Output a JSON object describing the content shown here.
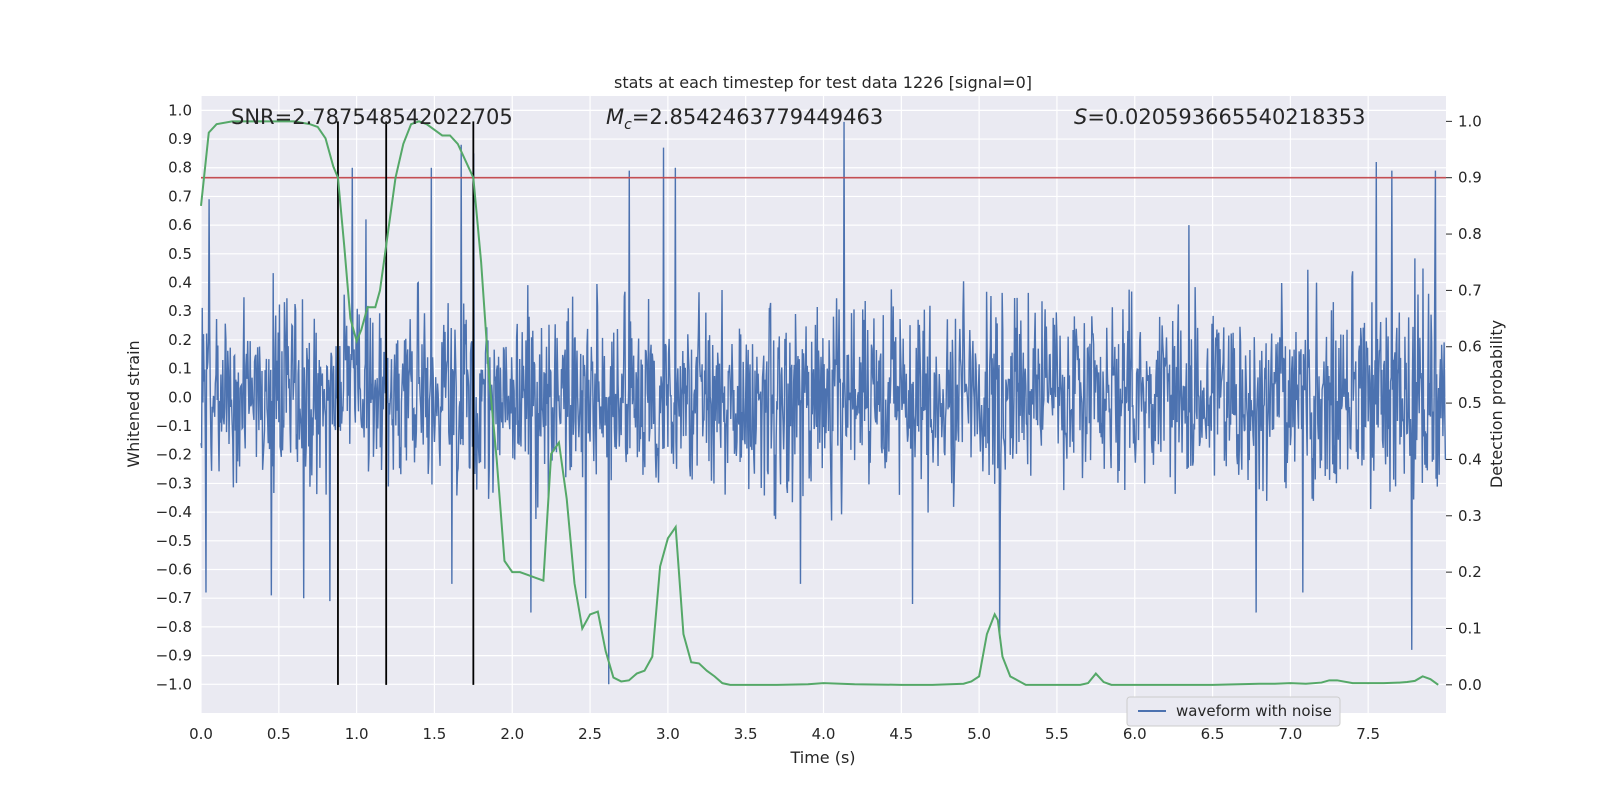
{
  "chart_data": {
    "type": "line",
    "title": "stats at each timestep for test data 1226 [signal=0]",
    "xlabel": "Time (s)",
    "ylabel": "Whitened strain",
    "y2label": "Detection probability",
    "xlim": [
      0,
      8
    ],
    "ylim": [
      -1.1,
      1.05
    ],
    "y2lim": [
      -0.05,
      1.045
    ],
    "x_ticks": [
      "0.0",
      "0.5",
      "1.0",
      "1.5",
      "2.0",
      "2.5",
      "3.0",
      "3.5",
      "4.0",
      "4.5",
      "5.0",
      "5.5",
      "6.0",
      "6.5",
      "7.0",
      "7.5"
    ],
    "y_ticks": [
      "1.0",
      "0.9",
      "0.8",
      "0.7",
      "0.6",
      "0.5",
      "0.4",
      "0.3",
      "0.2",
      "0.1",
      "0.0",
      "-0.1",
      "-0.2",
      "-0.3",
      "-0.4",
      "-0.5",
      "-0.6",
      "-0.7",
      "-0.8",
      "-0.9",
      "-1.0"
    ],
    "y2_ticks": [
      "1.0",
      "0.9",
      "0.8",
      "0.7",
      "0.6",
      "0.5",
      "0.4",
      "0.3",
      "0.2",
      "0.1",
      "0.0"
    ],
    "grid": true,
    "legend_position": "bottom-right",
    "annotations": {
      "snr": "SNR=2.787548542022705",
      "mc_symbol": "M",
      "mc_sub": "c",
      "mc_value": "=2.8542463779449463",
      "s_symbol": "S",
      "s_value": "=0.020593665540218353"
    },
    "threshold": 0.9,
    "vlines": [
      0.88,
      1.19,
      1.75
    ],
    "colors": {
      "waveform": "#4c72b0",
      "probability": "#55a868",
      "threshold": "#c44e52",
      "vlines": "#000000",
      "background": "#eaeaf2",
      "grid": "#ffffff"
    },
    "series": [
      {
        "name": "waveform with noise",
        "kind": "noise",
        "sample_step": 0.004,
        "typical_envelope": 0.42,
        "spikes": [
          {
            "x": 0.03,
            "y": -0.68
          },
          {
            "x": 0.05,
            "y": 0.69
          },
          {
            "x": 0.45,
            "y": -0.69
          },
          {
            "x": 0.66,
            "y": -0.7
          },
          {
            "x": 0.83,
            "y": -0.71
          },
          {
            "x": 0.97,
            "y": 0.8
          },
          {
            "x": 1.06,
            "y": 0.62
          },
          {
            "x": 1.48,
            "y": 0.8
          },
          {
            "x": 1.61,
            "y": -0.65
          },
          {
            "x": 1.67,
            "y": 0.88
          },
          {
            "x": 1.75,
            "y": 0.85
          },
          {
            "x": 2.12,
            "y": -0.75
          },
          {
            "x": 2.47,
            "y": -0.7
          },
          {
            "x": 2.62,
            "y": -1.0
          },
          {
            "x": 2.75,
            "y": 0.79
          },
          {
            "x": 2.97,
            "y": 0.87
          },
          {
            "x": 3.05,
            "y": 0.8
          },
          {
            "x": 3.85,
            "y": -0.65
          },
          {
            "x": 4.13,
            "y": 0.96
          },
          {
            "x": 4.57,
            "y": -0.72
          },
          {
            "x": 5.13,
            "y": -0.84
          },
          {
            "x": 6.35,
            "y": 0.6
          },
          {
            "x": 6.78,
            "y": -0.75
          },
          {
            "x": 7.08,
            "y": -0.68
          },
          {
            "x": 7.55,
            "y": 0.82
          },
          {
            "x": 7.65,
            "y": 0.79
          },
          {
            "x": 7.78,
            "y": -0.88
          },
          {
            "x": 7.93,
            "y": 0.79
          }
        ]
      },
      {
        "name": "",
        "axis": "y2",
        "x": [
          0,
          0.05,
          0.1,
          0.2,
          0.3,
          0.4,
          0.5,
          0.6,
          0.7,
          0.75,
          0.8,
          0.85,
          0.88,
          0.92,
          0.96,
          1.0,
          1.03,
          1.07,
          1.12,
          1.15,
          1.2,
          1.25,
          1.3,
          1.35,
          1.4,
          1.45,
          1.5,
          1.55,
          1.6,
          1.65,
          1.7,
          1.75,
          1.8,
          1.85,
          1.9,
          1.95,
          2.0,
          2.05,
          2.1,
          2.15,
          2.2,
          2.25,
          2.3,
          2.35,
          2.4,
          2.45,
          2.5,
          2.55,
          2.6,
          2.65,
          2.7,
          2.75,
          2.8,
          2.85,
          2.9,
          2.95,
          3.0,
          3.05,
          3.1,
          3.15,
          3.2,
          3.25,
          3.3,
          3.35,
          3.4,
          3.5,
          3.7,
          3.9,
          4.0,
          4.2,
          4.5,
          4.7,
          4.9,
          4.95,
          5.0,
          5.05,
          5.1,
          5.12,
          5.15,
          5.2,
          5.3,
          5.5,
          5.65,
          5.7,
          5.75,
          5.8,
          5.85,
          5.9,
          6.0,
          6.5,
          6.8,
          6.9,
          7.0,
          7.1,
          7.2,
          7.25,
          7.3,
          7.4,
          7.6,
          7.7,
          7.75,
          7.8,
          7.85,
          7.9,
          7.95
        ],
        "y": [
          0.85,
          0.98,
          0.995,
          1.0,
          1.0,
          1.0,
          1.0,
          1.0,
          0.995,
          0.99,
          0.97,
          0.92,
          0.9,
          0.78,
          0.65,
          0.61,
          0.63,
          0.67,
          0.67,
          0.7,
          0.8,
          0.9,
          0.96,
          0.995,
          1.0,
          0.995,
          0.985,
          0.975,
          0.975,
          0.96,
          0.93,
          0.9,
          0.75,
          0.55,
          0.4,
          0.22,
          0.2,
          0.2,
          0.195,
          0.19,
          0.185,
          0.41,
          0.43,
          0.33,
          0.18,
          0.1,
          0.125,
          0.13,
          0.06,
          0.013,
          0.006,
          0.008,
          0.02,
          0.025,
          0.05,
          0.21,
          0.26,
          0.28,
          0.09,
          0.04,
          0.038,
          0.025,
          0.015,
          0.003,
          0.0,
          0.0,
          0.0,
          0.001,
          0.003,
          0.001,
          0.0,
          0.0,
          0.002,
          0.006,
          0.015,
          0.09,
          0.125,
          0.115,
          0.05,
          0.015,
          0.0,
          0.0,
          0.0,
          0.003,
          0.02,
          0.005,
          0.0,
          0.0,
          0.0,
          0.0,
          0.002,
          0.002,
          0.003,
          0.002,
          0.004,
          0.008,
          0.008,
          0.003,
          0.003,
          0.004,
          0.005,
          0.007,
          0.015,
          0.01,
          0.0
        ]
      }
    ]
  }
}
